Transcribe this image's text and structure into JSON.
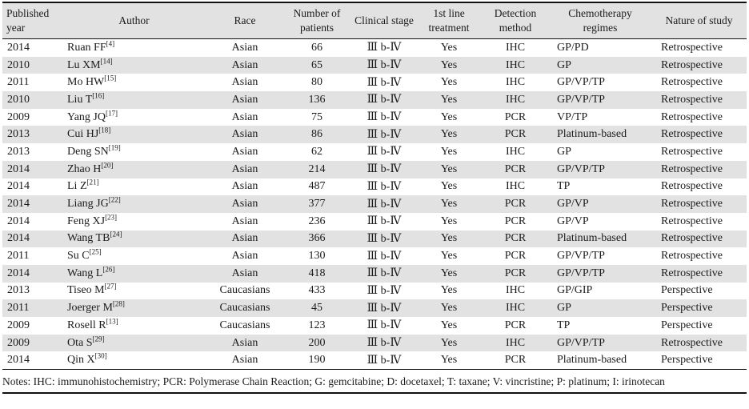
{
  "header": {
    "columns": [
      {
        "label": "Published year"
      },
      {
        "label": "Author"
      },
      {
        "label": "Race"
      },
      {
        "label": "Number of patients"
      },
      {
        "label": "Clinical stage"
      },
      {
        "label": "1st line treatment"
      },
      {
        "label": "Detection method"
      },
      {
        "label": "Chemotherapy regimes"
      },
      {
        "label": "Nature of study"
      }
    ]
  },
  "table": {
    "rows": [
      {
        "year": "2014",
        "author": "Ruan FF",
        "ref": "[4]",
        "race": "Asian",
        "patients": "66",
        "stage": "Ⅲ b-Ⅳ",
        "first_line": "Yes",
        "detection": "IHC",
        "chemo": "GP/PD",
        "nature": "Retrospective"
      },
      {
        "year": "2010",
        "author": "Lu XM",
        "ref": "[14]",
        "race": "Asian",
        "patients": "65",
        "stage": "Ⅲ b-Ⅳ",
        "first_line": "Yes",
        "detection": "IHC",
        "chemo": "GP",
        "nature": "Retrospective"
      },
      {
        "year": "2011",
        "author": "Mo HW",
        "ref": "[15]",
        "race": "Asian",
        "patients": "80",
        "stage": "Ⅲ b-Ⅳ",
        "first_line": "Yes",
        "detection": "IHC",
        "chemo": "GP/VP/TP",
        "nature": "Retrospective"
      },
      {
        "year": "2010",
        "author": "Liu T",
        "ref": "[16]",
        "race": "Asian",
        "patients": "136",
        "stage": "Ⅲ b-Ⅳ",
        "first_line": "Yes",
        "detection": "IHC",
        "chemo": "GP/VP/TP",
        "nature": "Retrospective"
      },
      {
        "year": "2009",
        "author": "Yang JQ",
        "ref": "[17]",
        "race": "Asian",
        "patients": "75",
        "stage": "Ⅲ b-Ⅳ",
        "first_line": "Yes",
        "detection": "PCR",
        "chemo": "VP/TP",
        "nature": "Retrospective"
      },
      {
        "year": "2013",
        "author": "Cui HJ",
        "ref": "[18]",
        "race": "Asian",
        "patients": "86",
        "stage": "Ⅲ b-Ⅳ",
        "first_line": "Yes",
        "detection": "PCR",
        "chemo": "Platinum-based",
        "nature": "Retrospective"
      },
      {
        "year": "2013",
        "author": "Deng SN",
        "ref": "[19]",
        "race": "Asian",
        "patients": "62",
        "stage": "Ⅲ b-Ⅳ",
        "first_line": "Yes",
        "detection": "IHC",
        "chemo": "GP",
        "nature": "Retrospective"
      },
      {
        "year": "2014",
        "author": "Zhao H",
        "ref": "[20]",
        "race": "Asian",
        "patients": "214",
        "stage": "Ⅲ b-Ⅳ",
        "first_line": "Yes",
        "detection": "PCR",
        "chemo": "GP/VP/TP",
        "nature": "Retrospective"
      },
      {
        "year": "2014",
        "author": "Li Z",
        "ref": "[21]",
        "race": "Asian",
        "patients": "487",
        "stage": "Ⅲ b-Ⅳ",
        "first_line": "Yes",
        "detection": "IHC",
        "chemo": "TP",
        "nature": "Retrospective"
      },
      {
        "year": "2014",
        "author": "Liang JG",
        "ref": "[22]",
        "race": "Asian",
        "patients": "377",
        "stage": "Ⅲ b-Ⅳ",
        "first_line": "Yes",
        "detection": "PCR",
        "chemo": "GP/VP",
        "nature": "Retrospective"
      },
      {
        "year": "2014",
        "author": "Feng XJ",
        "ref": "[23]",
        "race": "Asian",
        "patients": "236",
        "stage": "Ⅲ b-Ⅳ",
        "first_line": "Yes",
        "detection": "PCR",
        "chemo": "GP/VP",
        "nature": "Retrospective"
      },
      {
        "year": "2014",
        "author": "Wang TB",
        "ref": "[24]",
        "race": "Asian",
        "patients": "366",
        "stage": "Ⅲ b-Ⅳ",
        "first_line": "Yes",
        "detection": "PCR",
        "chemo": "Platinum-based",
        "nature": "Retrospective"
      },
      {
        "year": "2011",
        "author": "Su C",
        "ref": "[25]",
        "race": "Asian",
        "patients": "130",
        "stage": "Ⅲ b-Ⅳ",
        "first_line": "Yes",
        "detection": "PCR",
        "chemo": "GP/VP/TP",
        "nature": "Retrospective"
      },
      {
        "year": "2014",
        "author": "Wang L",
        "ref": "[26]",
        "race": "Asian",
        "patients": "418",
        "stage": "Ⅲ b-Ⅳ",
        "first_line": "Yes",
        "detection": "PCR",
        "chemo": "GP/VP/TP",
        "nature": "Retrospective"
      },
      {
        "year": "2013",
        "author": "Tiseo M",
        "ref": "[27]",
        "race": "Caucasians",
        "patients": "433",
        "stage": "Ⅲ b-Ⅳ",
        "first_line": "Yes",
        "detection": "IHC",
        "chemo": "GP/GIP",
        "nature": "Perspective"
      },
      {
        "year": "2011",
        "author": "Joerger M",
        "ref": "[28]",
        "race": "Caucasians",
        "patients": "45",
        "stage": "Ⅲ b-Ⅳ",
        "first_line": "Yes",
        "detection": "IHC",
        "chemo": "GP",
        "nature": "Perspective"
      },
      {
        "year": "2009",
        "author": "Rosell R",
        "ref": "[13]",
        "race": "Caucasians",
        "patients": "123",
        "stage": "Ⅲ b-Ⅳ",
        "first_line": "Yes",
        "detection": "PCR",
        "chemo": "TP",
        "nature": "Perspective"
      },
      {
        "year": "2009",
        "author": "Ota S",
        "ref": "[29]",
        "race": "Asian",
        "patients": "200",
        "stage": "Ⅲ b-Ⅳ",
        "first_line": "Yes",
        "detection": "IHC",
        "chemo": "GP/VP/TP",
        "nature": "Retrospective"
      },
      {
        "year": "2014",
        "author": "Qin X",
        "ref": "[30]",
        "race": "Asian",
        "patients": "190",
        "stage": "Ⅲ b-Ⅳ",
        "first_line": "Yes",
        "detection": "PCR",
        "chemo": "Platinum-based",
        "nature": "Perspective"
      }
    ]
  },
  "notes": "Notes: IHC: immunohistochemistry; PCR: Polymerase Chain Reaction; G: gemcitabine; D: docetaxel; T: taxane; V: vincristine; P: platinum; I: irinotecan"
}
